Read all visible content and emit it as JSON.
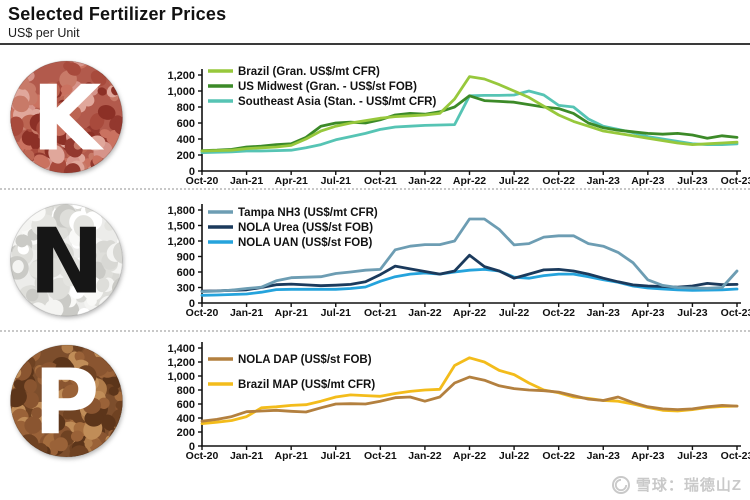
{
  "header": {
    "title": "Selected Fertilizer Prices",
    "subtitle": "US$ per Unit"
  },
  "watermark": {
    "text": "雪球：瑞德山Z"
  },
  "chart_data": [
    {
      "type": "line",
      "badge": {
        "letter": "K",
        "letter_color": "#ffffff",
        "base_color": "#b25a4c",
        "palette": [
          "#c87a68",
          "#a84a3c",
          "#d6948a",
          "#93382e",
          "#bc6552",
          "#e0a79b",
          "#8c3026",
          "#ca7260"
        ]
      },
      "ylim": [
        0,
        1200
      ],
      "ytick_step": 200,
      "grid": false,
      "legend_position": "top-left",
      "x": [
        "Oct-20",
        "Nov-20",
        "Dec-20",
        "Jan-21",
        "Feb-21",
        "Mar-21",
        "Apr-21",
        "May-21",
        "Jun-21",
        "Jul-21",
        "Aug-21",
        "Sep-21",
        "Oct-21",
        "Nov-21",
        "Dec-21",
        "Jan-22",
        "Feb-22",
        "Mar-22",
        "Apr-22",
        "May-22",
        "Jun-22",
        "Jul-22",
        "Aug-22",
        "Sep-22",
        "Oct-22",
        "Nov-22",
        "Dec-22",
        "Jan-23",
        "Feb-23",
        "Mar-23",
        "Apr-23",
        "May-23",
        "Jun-23",
        "Jul-23",
        "Aug-23",
        "Sep-23",
        "Oct-23"
      ],
      "x_tick_labels": [
        "Oct-20",
        "Jan-21",
        "Apr-21",
        "Jul-21",
        "Oct-21",
        "Jan-22",
        "Apr-22",
        "Jul-22",
        "Oct-22",
        "Jan-23",
        "Apr-23",
        "Jul-23",
        "Oct-23"
      ],
      "series": [
        {
          "name": "Brazil (Gran. US$/mt CFR)",
          "color": "#97C83C",
          "values": [
            250,
            255,
            260,
            280,
            290,
            300,
            320,
            400,
            500,
            560,
            600,
            630,
            660,
            680,
            690,
            700,
            720,
            900,
            1180,
            1150,
            1080,
            1000,
            920,
            810,
            700,
            620,
            560,
            500,
            470,
            440,
            410,
            380,
            350,
            330,
            340,
            350,
            360
          ]
        },
        {
          "name": "US Midwest (Gran. - US$/st FOB)",
          "color": "#3C8A28",
          "values": [
            255,
            260,
            270,
            300,
            310,
            330,
            340,
            420,
            560,
            600,
            610,
            600,
            640,
            700,
            720,
            710,
            740,
            800,
            940,
            880,
            870,
            860,
            830,
            800,
            780,
            720,
            600,
            540,
            510,
            490,
            470,
            460,
            470,
            450,
            410,
            440,
            420
          ]
        },
        {
          "name": "Southeast Asia (Stan. - US$/mt CFR)",
          "color": "#56C4B4",
          "values": [
            230,
            235,
            240,
            250,
            250,
            255,
            260,
            290,
            330,
            390,
            430,
            470,
            520,
            550,
            560,
            570,
            575,
            580,
            940,
            945,
            945,
            950,
            1000,
            950,
            820,
            800,
            650,
            560,
            520,
            480,
            430,
            400,
            370,
            340,
            330,
            330,
            340
          ]
        }
      ]
    },
    {
      "type": "line",
      "badge": {
        "letter": "N",
        "letter_color": "#161616",
        "base_color": "#ececea",
        "palette": [
          "#ffffff",
          "#f4f4f2",
          "#e4e4e0",
          "#d8d8d4",
          "#cacac6",
          "#f9f9f7",
          "#dededa"
        ]
      },
      "ylim": [
        0,
        1800
      ],
      "ytick_step": 300,
      "grid": false,
      "legend_position": "top-left",
      "x": [
        "Oct-20",
        "Nov-20",
        "Dec-20",
        "Jan-21",
        "Feb-21",
        "Mar-21",
        "Apr-21",
        "May-21",
        "Jun-21",
        "Jul-21",
        "Aug-21",
        "Sep-21",
        "Oct-21",
        "Nov-21",
        "Dec-21",
        "Jan-22",
        "Feb-22",
        "Mar-22",
        "Apr-22",
        "May-22",
        "Jun-22",
        "Jul-22",
        "Aug-22",
        "Sep-22",
        "Oct-22",
        "Nov-22",
        "Dec-22",
        "Jan-23",
        "Feb-23",
        "Mar-23",
        "Apr-23",
        "May-23",
        "Jun-23",
        "Jul-23",
        "Aug-23",
        "Sep-23",
        "Oct-23"
      ],
      "x_tick_labels": [
        "Oct-20",
        "Jan-21",
        "Apr-21",
        "Jul-21",
        "Oct-21",
        "Jan-22",
        "Apr-22",
        "Jul-22",
        "Oct-22",
        "Jan-23",
        "Apr-23",
        "Jul-23",
        "Oct-23"
      ],
      "series": [
        {
          "name": "Tampa NH3 (US$/mt CFR)",
          "color": "#6D9DB3",
          "values": [
            220,
            230,
            250,
            280,
            305,
            430,
            490,
            500,
            510,
            570,
            600,
            635,
            650,
            1030,
            1100,
            1130,
            1130,
            1200,
            1625,
            1625,
            1425,
            1125,
            1150,
            1275,
            1300,
            1300,
            1150,
            1100,
            980,
            780,
            450,
            340,
            300,
            290,
            285,
            300,
            620
          ]
        },
        {
          "name": "NOLA Urea (US$/st FOB)",
          "color": "#1B3A5C",
          "values": [
            230,
            235,
            245,
            255,
            300,
            355,
            365,
            350,
            335,
            345,
            360,
            410,
            550,
            715,
            660,
            610,
            560,
            620,
            925,
            705,
            620,
            480,
            560,
            640,
            650,
            620,
            560,
            480,
            410,
            350,
            330,
            320,
            305,
            330,
            380,
            355,
            360
          ]
        },
        {
          "name": "NOLA UAN (US$/st FOB)",
          "color": "#25A3DC",
          "values": [
            150,
            155,
            165,
            175,
            210,
            260,
            265,
            265,
            265,
            265,
            280,
            310,
            420,
            510,
            560,
            580,
            560,
            600,
            635,
            650,
            620,
            500,
            480,
            530,
            560,
            560,
            510,
            450,
            400,
            330,
            290,
            270,
            255,
            245,
            250,
            255,
            270
          ]
        }
      ]
    },
    {
      "type": "line",
      "badge": {
        "letter": "P",
        "letter_color": "#ffffff",
        "base_color": "#7d4e2c",
        "palette": [
          "#9a6238",
          "#6f4222",
          "#b07c4a",
          "#5c351a",
          "#a56d3e",
          "#c08d58",
          "#8a5530"
        ]
      },
      "ylim": [
        0,
        1400
      ],
      "ytick_step": 200,
      "grid": false,
      "legend_position": "top-left",
      "x": [
        "Oct-20",
        "Nov-20",
        "Dec-20",
        "Jan-21",
        "Feb-21",
        "Mar-21",
        "Apr-21",
        "May-21",
        "Jun-21",
        "Jul-21",
        "Aug-21",
        "Sep-21",
        "Oct-21",
        "Nov-21",
        "Dec-21",
        "Jan-22",
        "Feb-22",
        "Mar-22",
        "Apr-22",
        "May-22",
        "Jun-22",
        "Jul-22",
        "Aug-22",
        "Sep-22",
        "Oct-22",
        "Nov-22",
        "Dec-22",
        "Jan-23",
        "Feb-23",
        "Mar-23",
        "Apr-23",
        "May-23",
        "Jun-23",
        "Jul-23",
        "Aug-23",
        "Sep-23",
        "Oct-23"
      ],
      "x_tick_labels": [
        "Oct-20",
        "Jan-21",
        "Apr-21",
        "Jul-21",
        "Oct-21",
        "Jan-22",
        "Apr-22",
        "Jul-22",
        "Oct-22",
        "Jan-23",
        "Apr-23",
        "Jul-23",
        "Oct-23"
      ],
      "series": [
        {
          "name": "NOLA DAP (US$/st FOB)",
          "color": "#B3803F",
          "values": [
            355,
            380,
            420,
            490,
            500,
            510,
            495,
            485,
            545,
            600,
            605,
            600,
            640,
            690,
            700,
            640,
            700,
            900,
            985,
            940,
            860,
            820,
            800,
            790,
            770,
            720,
            670,
            650,
            700,
            620,
            560,
            530,
            520,
            530,
            560,
            580,
            570
          ]
        },
        {
          "name": "Brazil MAP (US$/mt CFR)",
          "color": "#F3BC1B",
          "values": [
            320,
            340,
            365,
            420,
            545,
            560,
            580,
            590,
            640,
            700,
            730,
            720,
            710,
            750,
            780,
            800,
            810,
            1150,
            1260,
            1200,
            1080,
            1020,
            900,
            800,
            760,
            700,
            680,
            650,
            640,
            600,
            550,
            510,
            500,
            520,
            550,
            565,
            570
          ]
        }
      ]
    }
  ]
}
